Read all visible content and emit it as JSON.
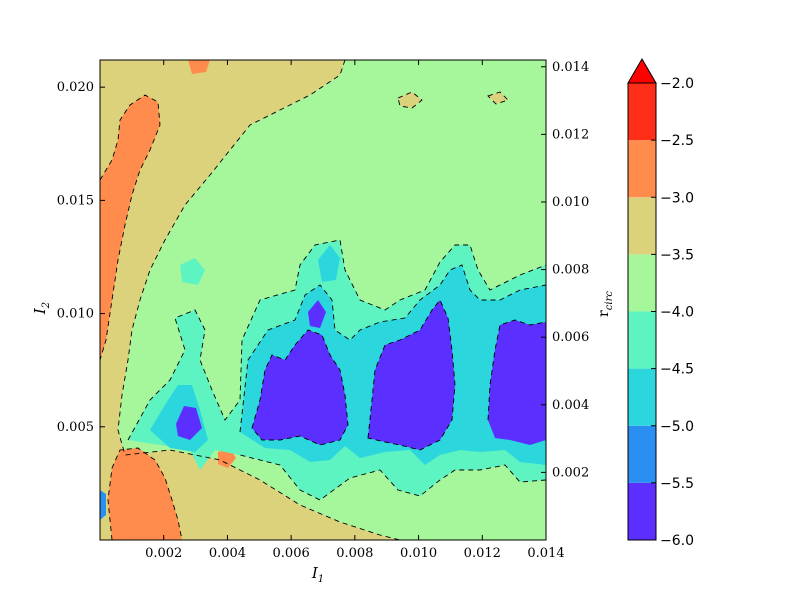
{
  "chart_data": {
    "type": "heatmap",
    "subtype": "filled-contour",
    "xlabel": "I",
    "xlabel_sub": "1",
    "ylabel": "I",
    "ylabel_sub": "2",
    "right_axis_label": "r",
    "right_axis_label_sub": "circ",
    "xlim": [
      0.0,
      0.014
    ],
    "ylim": [
      0.0,
      0.0212
    ],
    "right_ylim": [
      0.0,
      0.0142
    ],
    "x_ticks": [
      "0.002",
      "0.004",
      "0.006",
      "0.008",
      "0.010",
      "0.012",
      "0.014"
    ],
    "y_ticks": [
      "0.005",
      "0.010",
      "0.015",
      "0.020"
    ],
    "right_ticks": [
      "0.002",
      "0.004",
      "0.006",
      "0.008",
      "0.010",
      "0.012",
      "0.014"
    ],
    "colorbar": {
      "levels": [
        -6.0,
        -5.5,
        -5.0,
        -4.5,
        -4.0,
        -3.5,
        -3.0,
        -2.5,
        -2.0
      ],
      "tick_labels": [
        "−6.0",
        "−5.5",
        "−5.0",
        "−4.5",
        "−4.0",
        "−3.5",
        "−3.0",
        "−2.5",
        "−2.0"
      ],
      "colors": [
        "#5b2fff",
        "#2a8ff0",
        "#2bd6dd",
        "#5ef4c2",
        "#a6f79c",
        "#ddd27c",
        "#ff8c4c",
        "#ff2e18"
      ],
      "extend_color": "#ff0000",
      "extend": "max"
    },
    "regions": [
      {
        "name": "orange band left edge",
        "level": -3.0
      },
      {
        "name": "tan band left",
        "level": -3.5
      },
      {
        "name": "green background",
        "level": -4.0
      },
      {
        "name": "low blob 1",
        "level": -6.0
      },
      {
        "name": "low blob 2",
        "level": -6.0
      },
      {
        "name": "low blob 3",
        "level": -6.0
      }
    ]
  }
}
